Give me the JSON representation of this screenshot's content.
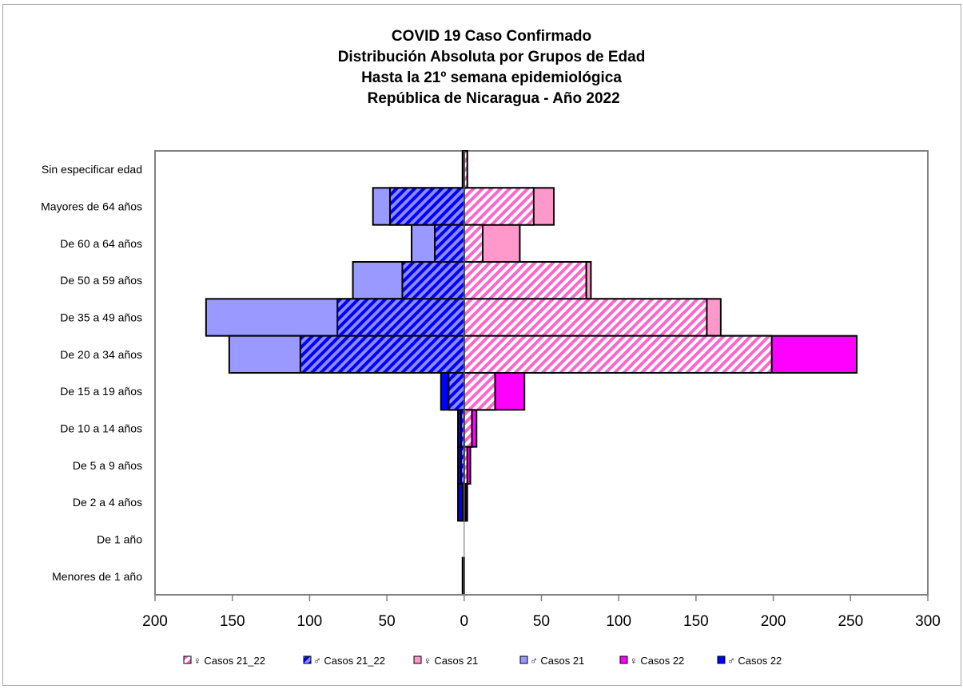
{
  "chart_data": {
    "type": "bar",
    "orientation": "horizontal-population-pyramid",
    "title_lines": [
      "COVID 19 Caso Confirmado",
      "Distribución Absoluta por Grupos de Edad",
      "Hasta la 21º semana epidemiológica",
      " República de Nicaragua - Año 2022"
    ],
    "categories": [
      "Sin especificar edad",
      "Mayores de 64 años",
      "De 60 a 64 años",
      "De 50 a 59 años",
      "De 35 a 49 años",
      "De 20 a 34 años",
      "De 15 a 19 años",
      "De 10 a 14 años",
      "De 5 a 9 años",
      "De 2 a 4 años",
      "De 1 año",
      "Menores de 1 año"
    ],
    "xlim": [
      -200,
      300
    ],
    "x_ticks": [
      -200,
      -150,
      -100,
      -50,
      0,
      50,
      100,
      150,
      200,
      250,
      300
    ],
    "x_tick_labels": [
      "200",
      "150",
      "100",
      "50",
      "0",
      "50",
      "100",
      "150",
      "200",
      "250",
      "300"
    ],
    "series": [
      {
        "name": "♀ Casos 21",
        "key": "f21",
        "side": "female",
        "color": "#ff99cc",
        "pattern": "solid",
        "values": [
          2,
          58,
          36,
          82,
          166,
          199,
          20,
          5,
          2,
          1,
          0,
          0
        ]
      },
      {
        "name": "♀ Casos 22",
        "key": "f22",
        "side": "female",
        "color": "#ff00ff",
        "pattern": "solid",
        "values": [
          0,
          0,
          0,
          0,
          0,
          254,
          39,
          8,
          4,
          2,
          0,
          0
        ]
      },
      {
        "name": "♀ Casos 21_22",
        "key": "f2122",
        "side": "female",
        "color": "#ff66cc",
        "pattern": "hatch",
        "values": [
          2,
          45,
          12,
          79,
          157,
          199,
          20,
          5,
          2,
          1,
          0,
          0
        ]
      },
      {
        "name": "♂ Casos 21",
        "key": "m21",
        "side": "male",
        "color": "#9999ff",
        "pattern": "solid",
        "values": [
          0,
          59,
          34,
          72,
          167,
          152,
          10,
          2,
          2,
          1,
          0,
          0
        ]
      },
      {
        "name": "♂ Casos 22",
        "key": "m22",
        "side": "male",
        "color": "#0000ff",
        "pattern": "solid",
        "values": [
          1,
          0,
          0,
          0,
          0,
          0,
          15,
          4,
          4,
          4,
          0,
          1
        ]
      },
      {
        "name": "♂ Casos 21_22",
        "key": "m2122",
        "side": "male",
        "color": "#6666ff",
        "pattern": "hatch",
        "values": [
          1,
          48,
          19,
          40,
          82,
          106,
          10,
          2,
          2,
          1,
          0,
          1
        ]
      }
    ],
    "legend": {
      "placement": "bottom",
      "entries": [
        {
          "label": "♀ Casos 21_22",
          "color": "#ff66cc",
          "pattern": "hatch"
        },
        {
          "label": "♂ Casos 21_22",
          "color": "#6666ff",
          "pattern": "hatch"
        },
        {
          "label": "♀ Casos 21",
          "color": "#ff99cc",
          "pattern": "solid"
        },
        {
          "label": "♂ Casos 21",
          "color": "#9999ff",
          "pattern": "solid"
        },
        {
          "label": "♀ Casos 22",
          "color": "#ff00ff",
          "pattern": "solid"
        },
        {
          "label": "♂ Casos 22",
          "color": "#0000ff",
          "pattern": "solid"
        }
      ]
    },
    "grid": false
  }
}
